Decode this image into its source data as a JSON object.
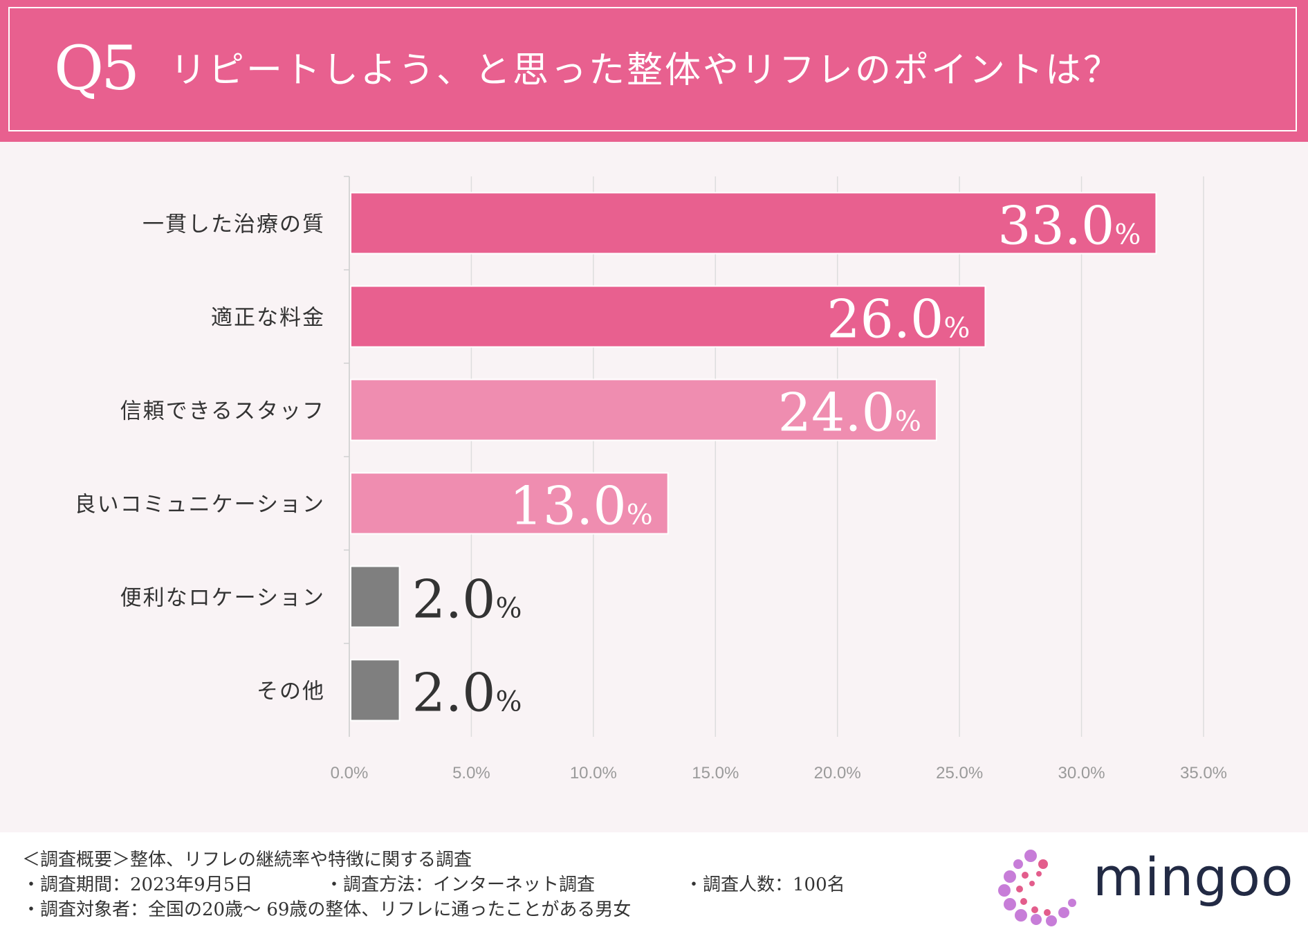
{
  "header": {
    "q_label": "Q5",
    "title": "リピートしよう、と思った整体やリフレのポイントは？"
  },
  "chart_data": {
    "type": "bar",
    "orientation": "horizontal",
    "title": "リピートしよう、と思った整体やリフレのポイントは？",
    "categories": [
      "一貫した治療の質",
      "適正な料金",
      "信頼できるスタッフ",
      "良いコミュニケーション",
      "便利なロケーション",
      "その他"
    ],
    "values": [
      33.0,
      26.0,
      24.0,
      13.0,
      2.0,
      2.0
    ],
    "value_labels": [
      "33.0",
      "26.0",
      "24.0",
      "13.0",
      "2.0",
      "2.0"
    ],
    "value_suffix": "%",
    "bar_colors": [
      "#e8608f",
      "#e8608f",
      "#ef8db0",
      "#ef8db0",
      "#7f7f7f",
      "#7f7f7f"
    ],
    "xlim": [
      0,
      35
    ],
    "x_ticks": [
      "0.0%",
      "5.0%",
      "10.0%",
      "15.0%",
      "20.0%",
      "25.0%",
      "30.0%",
      "35.0%"
    ],
    "grid": true
  },
  "footer": {
    "summary": "＜調査概要＞整体、リフレの継続率や特徴に関する調査",
    "period": "・調査期間：2023年9月5日",
    "method": "・調査方法：インターネット調査",
    "count": "・調査人数：100名",
    "subjects": "・調査対象者：全国の20歳〜 69歳の整体、リフレに通ったことがある男女"
  },
  "logo": {
    "text": "mingoo",
    "dot_color_a": "#c77dd8",
    "dot_color_b": "#e35d8c"
  }
}
